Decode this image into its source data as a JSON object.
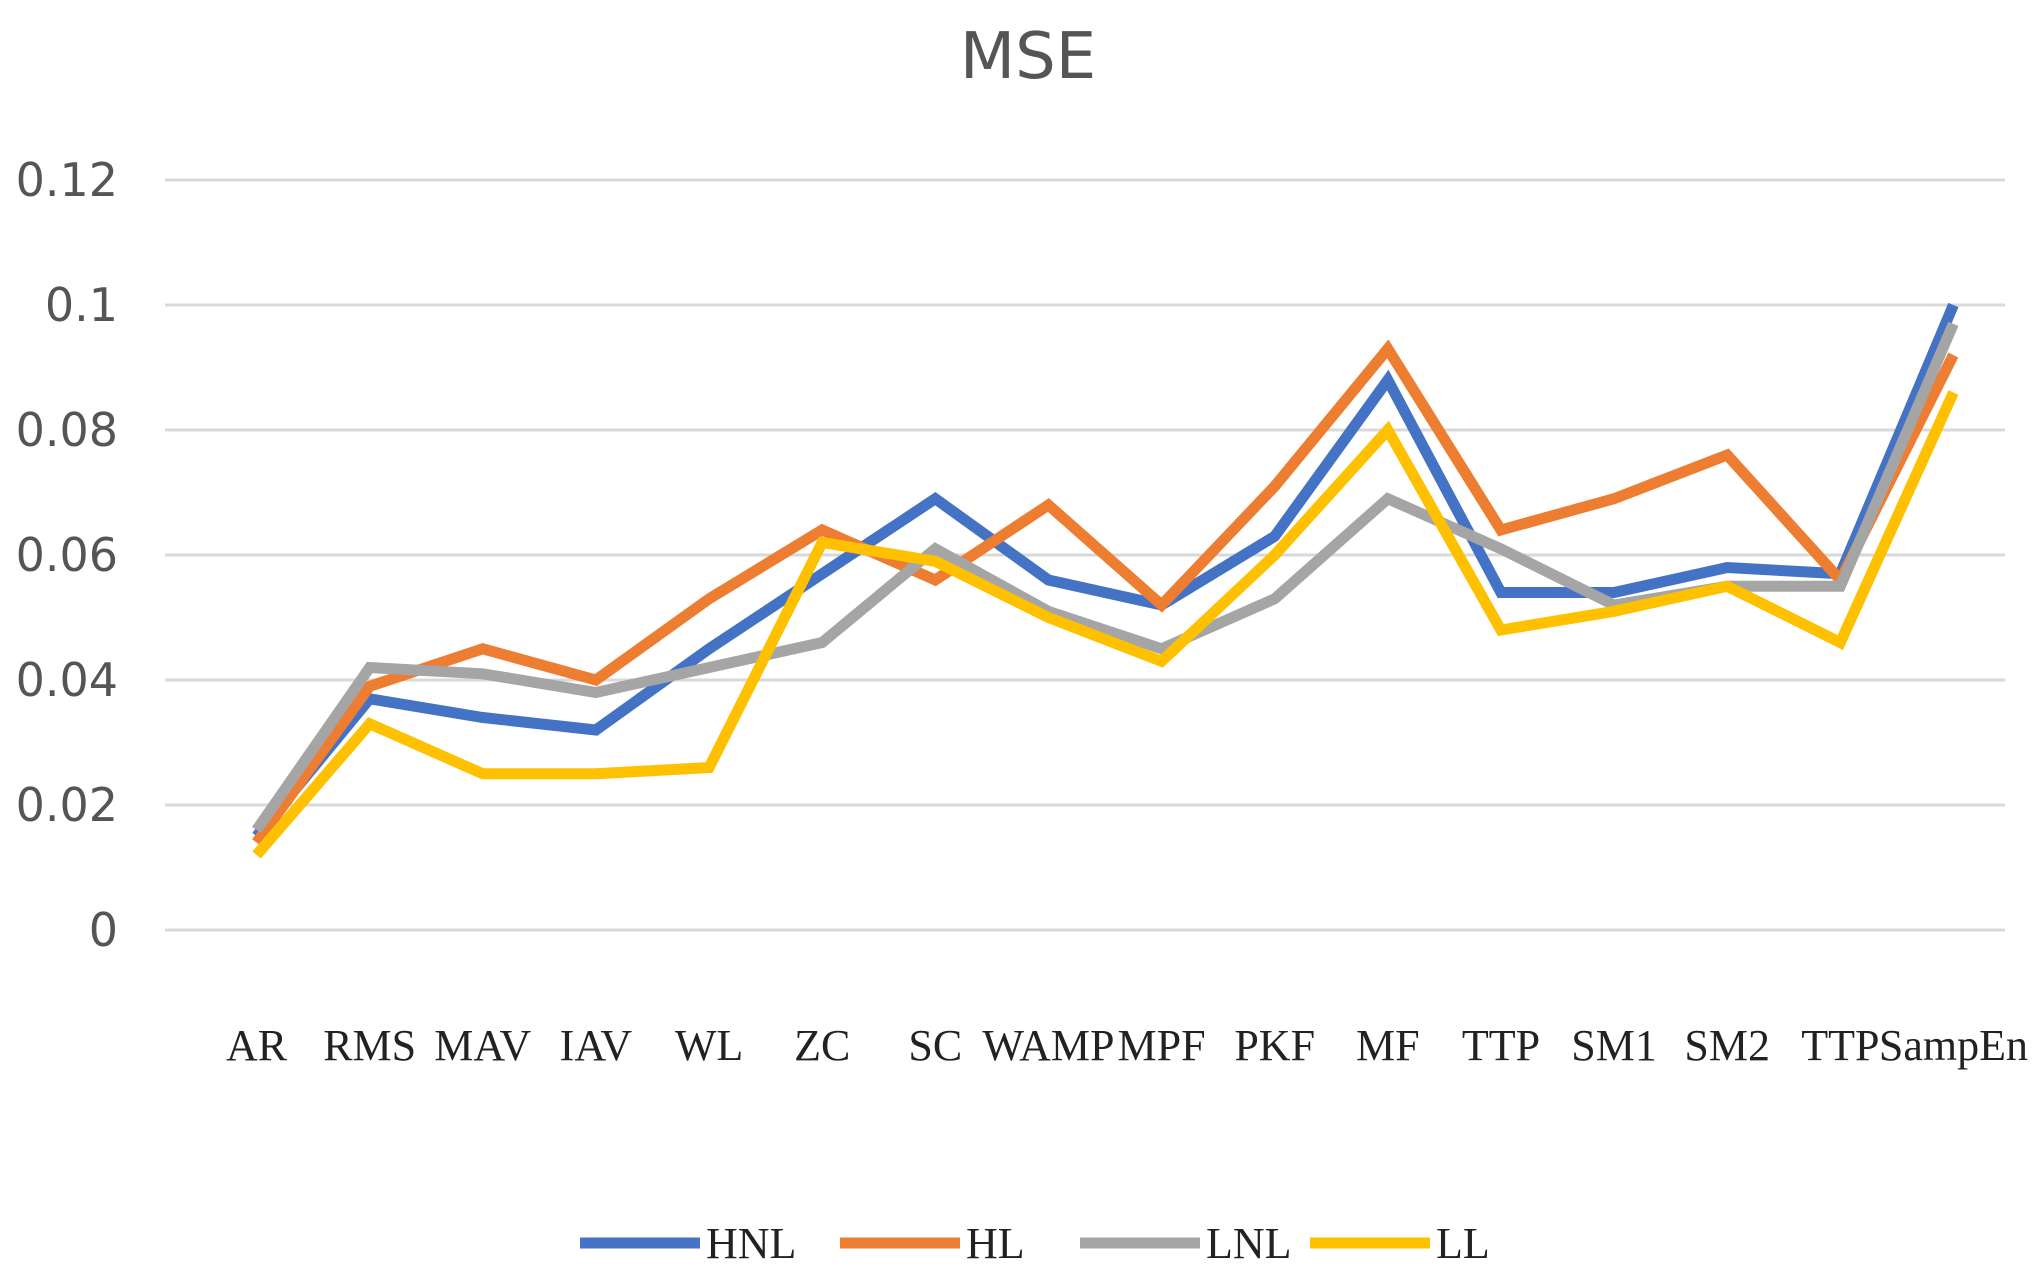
{
  "chart_data": {
    "type": "line",
    "title": "MSE",
    "xlabel": "",
    "ylabel": "",
    "ylim": [
      0,
      0.12
    ],
    "yticks": [
      "0",
      "0.02",
      "0.04",
      "0.06",
      "0.08",
      "0.1",
      "0.12"
    ],
    "ytick_values": [
      0,
      0.02,
      0.04,
      0.06,
      0.08,
      0.1,
      0.12
    ],
    "grid": true,
    "legend_position": "bottom",
    "categories": [
      "AR",
      "RMS",
      "MAV",
      "IAV",
      "WL",
      "ZC",
      "SC",
      "WAMP",
      "MPF",
      "PKF",
      "MF",
      "TTP",
      "SM1",
      "SM2",
      "TTP",
      "SampEn"
    ],
    "series": [
      {
        "name": "HNL",
        "color": "#4472C4",
        "values": [
          0.015,
          0.037,
          0.034,
          0.032,
          0.045,
          0.057,
          0.069,
          0.056,
          0.052,
          0.063,
          0.088,
          0.054,
          0.054,
          0.058,
          0.057,
          0.1
        ]
      },
      {
        "name": "HL",
        "color": "#ED7D31",
        "values": [
          0.014,
          0.039,
          0.045,
          0.04,
          0.053,
          0.064,
          0.056,
          0.068,
          0.052,
          0.071,
          0.093,
          0.064,
          0.069,
          0.076,
          0.056,
          0.092
        ]
      },
      {
        "name": "LNL",
        "color": "#A5A5A5",
        "values": [
          0.016,
          0.042,
          0.041,
          0.038,
          0.042,
          0.046,
          0.061,
          0.051,
          0.045,
          0.053,
          0.069,
          0.061,
          0.052,
          0.055,
          0.055,
          0.097
        ]
      },
      {
        "name": "LL",
        "color": "#FFC000",
        "values": [
          0.012,
          0.033,
          0.025,
          0.025,
          0.026,
          0.062,
          0.059,
          0.05,
          0.043,
          0.06,
          0.08,
          0.048,
          0.051,
          0.055,
          0.046,
          0.086
        ]
      }
    ]
  }
}
